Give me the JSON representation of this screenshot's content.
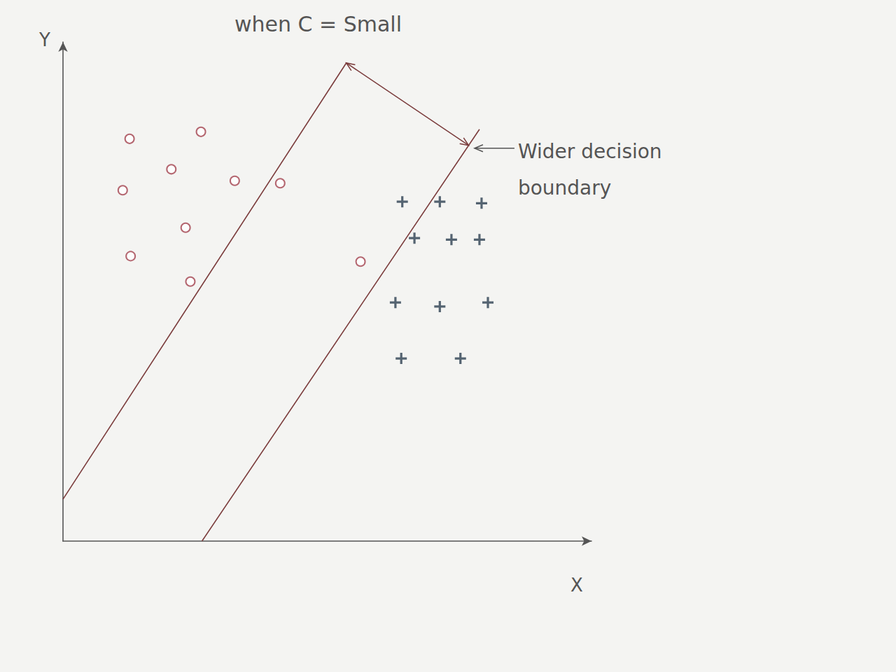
{
  "chart_data": {
    "type": "scatter",
    "title": "when C = Small",
    "x_label": "X",
    "y_label": "Y",
    "annotation": "Wider decision\nboundary",
    "xlim": [
      0,
      100
    ],
    "ylim": [
      0,
      100
    ],
    "grid": false,
    "tick_labels": false,
    "series": [
      {
        "type": "scatter",
        "marker": "circle",
        "color": "#a2414e",
        "values": [
          [
            12.6,
            80.6
          ],
          [
            26.1,
            82.0
          ],
          [
            20.5,
            74.5
          ],
          [
            11.3,
            70.3
          ],
          [
            32.5,
            72.2
          ],
          [
            41.1,
            71.7
          ],
          [
            23.2,
            62.8
          ],
          [
            12.8,
            57.1
          ],
          [
            24.1,
            52.0
          ],
          [
            56.3,
            56.0
          ]
        ]
      },
      {
        "type": "scatter",
        "marker": "plus",
        "color": "#2c3e50",
        "values": [
          [
            64.2,
            68.0
          ],
          [
            71.3,
            68.0
          ],
          [
            79.2,
            67.7
          ],
          [
            66.5,
            60.7
          ],
          [
            73.5,
            60.4
          ],
          [
            78.8,
            60.4
          ],
          [
            62.9,
            47.8
          ],
          [
            71.3,
            47.0
          ],
          [
            80.4,
            47.8
          ],
          [
            64.0,
            36.6
          ],
          [
            75.2,
            36.6
          ]
        ]
      },
      {
        "type": "line",
        "color": "#7a3b3b",
        "line_style": "solid",
        "values": [
          [
            0,
            8.4
          ],
          [
            53.6,
            95.8
          ]
        ]
      },
      {
        "type": "line",
        "color": "#7a3b3b",
        "line_style": "solid",
        "values": [
          [
            26.3,
            0
          ],
          [
            78.8,
            82.5
          ]
        ]
      }
    ]
  }
}
